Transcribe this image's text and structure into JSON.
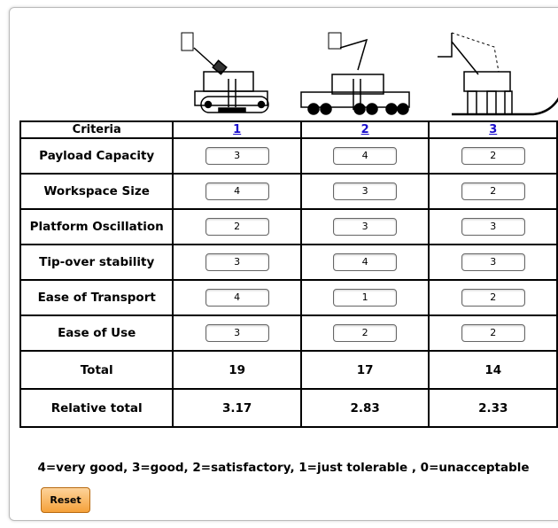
{
  "table": {
    "header": [
      "Criteria",
      "1",
      "2",
      "3"
    ],
    "rows": [
      {
        "label": "Payload Capacity",
        "scores": [
          3,
          4,
          2
        ]
      },
      {
        "label": "Workspace Size",
        "scores": [
          4,
          3,
          2
        ]
      },
      {
        "label": "Platform Oscillation",
        "scores": [
          2,
          3,
          3
        ]
      },
      {
        "label": "Tip-over stability",
        "scores": [
          3,
          4,
          3
        ]
      },
      {
        "label": "Ease of Transport",
        "scores": [
          4,
          1,
          2
        ]
      },
      {
        "label": "Ease of Use",
        "scores": [
          3,
          2,
          2
        ]
      }
    ],
    "total": {
      "label": "Total",
      "values": [
        19,
        17,
        14
      ]
    },
    "relative": {
      "label": "Relative total",
      "values": [
        3.17,
        2.83,
        2.33
      ]
    }
  },
  "legend": "4=very good, 3=good, 2=satisfactory, 1=just tolerable , 0=unacceptable",
  "button": "Reset"
}
